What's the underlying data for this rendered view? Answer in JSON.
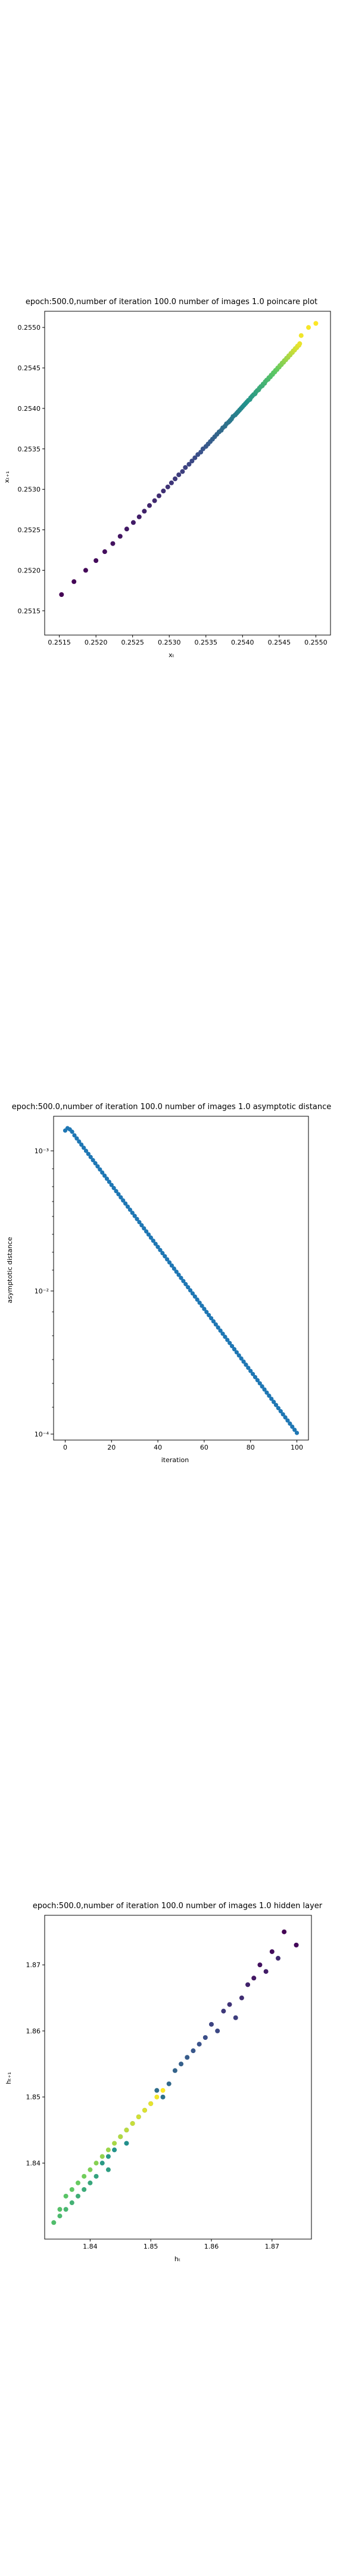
{
  "chart_data": [
    {
      "type": "scatter",
      "title": "epoch:500.0,number of iteration 100.0 number of images 1.0 poincare plot",
      "xlabel": "xₜ",
      "ylabel": "xₜ₊₁",
      "xlim": [
        0.2513,
        0.2552
      ],
      "ylim": [
        0.2512,
        0.2552
      ],
      "x_ticks": [
        "0.2515",
        "0.2520",
        "0.2525",
        "0.2530",
        "0.2535",
        "0.2540",
        "0.2545",
        "0.2550"
      ],
      "y_ticks": [
        "0.2515",
        "0.2520",
        "0.2525",
        "0.2530",
        "0.2535",
        "0.2540",
        "0.2545",
        "0.2550"
      ],
      "colormap": [
        "#440154",
        "#3b528b",
        "#21918c",
        "#5ec962",
        "#fde725"
      ],
      "x": [
        0.25153,
        0.2517,
        0.25186,
        0.252,
        0.25212,
        0.25223,
        0.25233,
        0.25242,
        0.25251,
        0.25259,
        0.25266,
        0.25273,
        0.2528,
        0.25286,
        0.25292,
        0.25298,
        0.25303,
        0.25308,
        0.25313,
        0.25318,
        0.25322,
        0.25327,
        0.25331,
        0.25335,
        0.25339,
        0.25343,
        0.25346,
        0.2535,
        0.25353,
        0.25356,
        0.25359,
        0.25362,
        0.25365,
        0.25368,
        0.25371,
        0.25373,
        0.25376,
        0.25378,
        0.25381,
        0.25383,
        0.25385,
        0.25387,
        0.2539,
        0.25392,
        0.25394,
        0.25396,
        0.25398,
        0.254,
        0.25402,
        0.25404,
        0.25406,
        0.25408,
        0.2541,
        0.25411,
        0.25413,
        0.25415,
        0.25417,
        0.25418,
        0.2542,
        0.25422,
        0.25423,
        0.25425,
        0.25427,
        0.25428,
        0.2543,
        0.25431,
        0.25433,
        0.25435,
        0.25436,
        0.25438,
        0.25439,
        0.25441,
        0.25442,
        0.25444,
        0.25445,
        0.25447,
        0.25448,
        0.2545,
        0.25451,
        0.25453,
        0.25454,
        0.25456,
        0.25457,
        0.25459,
        0.2546,
        0.25462,
        0.25463,
        0.25465,
        0.25466,
        0.25468,
        0.25469,
        0.25471,
        0.25472,
        0.25474,
        0.25475,
        0.25477,
        0.25478,
        0.2548,
        0.2549,
        0.255
      ],
      "y": [
        0.2517,
        0.25186,
        0.252,
        0.25212,
        0.25223,
        0.25233,
        0.25242,
        0.25251,
        0.25259,
        0.25266,
        0.25273,
        0.2528,
        0.25286,
        0.25292,
        0.25298,
        0.25303,
        0.25308,
        0.25313,
        0.25318,
        0.25322,
        0.25327,
        0.25331,
        0.25335,
        0.25339,
        0.25343,
        0.25346,
        0.2535,
        0.25353,
        0.25356,
        0.25359,
        0.25362,
        0.25365,
        0.25368,
        0.25371,
        0.25373,
        0.25376,
        0.25378,
        0.25381,
        0.25383,
        0.25385,
        0.25387,
        0.2539,
        0.25392,
        0.25394,
        0.25396,
        0.25398,
        0.254,
        0.25402,
        0.25404,
        0.25406,
        0.25408,
        0.2541,
        0.25411,
        0.25413,
        0.25415,
        0.25417,
        0.25418,
        0.2542,
        0.25422,
        0.25423,
        0.25425,
        0.25427,
        0.25428,
        0.2543,
        0.25431,
        0.25433,
        0.25435,
        0.25436,
        0.25438,
        0.25439,
        0.25441,
        0.25442,
        0.25444,
        0.25445,
        0.25447,
        0.25448,
        0.2545,
        0.25451,
        0.25453,
        0.25454,
        0.25456,
        0.25457,
        0.25459,
        0.2546,
        0.25462,
        0.25463,
        0.25465,
        0.25466,
        0.25468,
        0.25469,
        0.25471,
        0.25472,
        0.25474,
        0.25475,
        0.25477,
        0.25478,
        0.2548,
        0.2549,
        0.255,
        0.25505
      ]
    },
    {
      "type": "scatter",
      "title": "epoch:500.0,number of iteration 100.0  number of images 1.0 asymptotic distance",
      "xlabel": "iteration",
      "ylabel": "asymptotic distance",
      "xlim": [
        -5,
        105
      ],
      "ylim_log10": [
        -4.05,
        -2.85
      ],
      "y_scale": "log",
      "x_ticks": [
        0,
        20,
        40,
        60,
        80,
        100
      ],
      "y_ticks": [
        {
          "label": "10⁻³",
          "exp": -3
        },
        {
          "label": "10⁻²",
          "exp": -2
        },
        {
          "label": "10⁻⁴",
          "exp": -4
        }
      ],
      "color": "#1f77b4",
      "x_range": [
        0,
        100
      ],
      "y_log10_start": -2.9,
      "y_log10_end": -4.0,
      "head_log10": [
        -2.9,
        -2.88,
        -2.9,
        -2.94,
        -2.98
      ]
    },
    {
      "type": "scatter",
      "title": "epoch:500.0,number of iteration 100.0  number of images 1.0 hidden layer",
      "xlabel": "hₜ",
      "ylabel": "hₜ₊₁",
      "xlim": [
        1.8325,
        1.8765
      ],
      "ylim": [
        1.8285,
        1.8775
      ],
      "x_ticks": [
        "1.84",
        "1.85",
        "1.86",
        "1.87"
      ],
      "y_ticks": [
        "1.84",
        "1.85",
        "1.86",
        "1.87"
      ],
      "colormap": [
        "#440154",
        "#3b528b",
        "#21918c",
        "#5ec962",
        "#fde725"
      ],
      "x": [
        1.872,
        1.874,
        1.87,
        1.868,
        1.867,
        1.869,
        1.866,
        1.871,
        1.865,
        1.863,
        1.862,
        1.864,
        1.86,
        1.861,
        1.859,
        1.858,
        1.857,
        1.856,
        1.855,
        1.854,
        1.853,
        1.851,
        1.852,
        1.85,
        1.849,
        1.848,
        1.847,
        1.846,
        1.845,
        1.846,
        1.844,
        1.843,
        1.842,
        1.843,
        1.841,
        1.84,
        1.839,
        1.838,
        1.837,
        1.836,
        1.835,
        1.834,
        1.835,
        1.836,
        1.837,
        1.838,
        1.839,
        1.84,
        1.841,
        1.842,
        1.843,
        1.844,
        1.845,
        1.846,
        1.847,
        1.848,
        1.849,
        1.85,
        1.851,
        1.852
      ],
      "y": [
        1.875,
        1.873,
        1.872,
        1.87,
        1.868,
        1.869,
        1.867,
        1.871,
        1.865,
        1.864,
        1.863,
        1.862,
        1.861,
        1.86,
        1.859,
        1.858,
        1.857,
        1.856,
        1.855,
        1.854,
        1.852,
        1.851,
        1.85,
        1.849,
        1.848,
        1.847,
        1.846,
        1.845,
        1.844,
        1.843,
        1.842,
        1.841,
        1.84,
        1.839,
        1.838,
        1.837,
        1.836,
        1.835,
        1.834,
        1.833,
        1.832,
        1.831,
        1.833,
        1.835,
        1.836,
        1.837,
        1.838,
        1.839,
        1.84,
        1.841,
        1.842,
        1.843,
        1.844,
        1.845,
        1.846,
        1.847,
        1.848,
        1.849,
        1.85,
        1.851
      ]
    }
  ]
}
